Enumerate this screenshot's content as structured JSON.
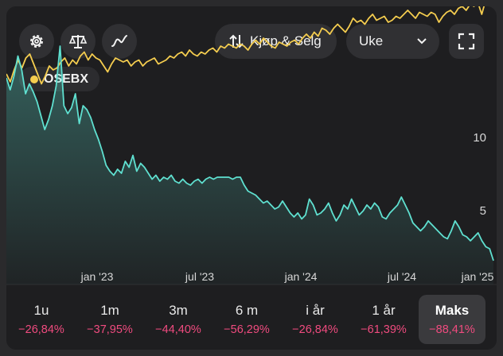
{
  "toolbar": {
    "icons": [
      "gear-icon",
      "scale-icon",
      "trend-line-icon"
    ],
    "trade_label": "Kjøp & Selg",
    "interval_label": "Uke",
    "fullscreen_icon": "fullscreen-icon"
  },
  "legend": {
    "label": "OSEBX",
    "color": "#f5cd4f"
  },
  "chart_data": {
    "type": "line",
    "x_ticks": [
      "jan '23",
      "jul '23",
      "jan '24",
      "jul '24",
      "jan '25"
    ],
    "y_ticks": [
      "5",
      "10"
    ],
    "ylim": [
      0,
      14
    ],
    "series": [
      {
        "name": "OSEBX",
        "color": "#f5cd4f",
        "values": [
          10.6,
          10.2,
          10.8,
          11.3,
          10.9,
          11.4,
          11.6,
          11.1,
          10.6,
          10.1,
          10.5,
          11.0,
          10.8,
          10.9,
          11.2,
          11.4,
          11.0,
          11.3,
          11.1,
          11.5,
          11.7,
          11.3,
          11.6,
          11.4,
          11.3,
          11.0,
          10.7,
          11.1,
          11.4,
          11.3,
          11.2,
          11.3,
          11.0,
          11.2,
          11.3,
          11.0,
          11.2,
          11.3,
          11.4,
          11.1,
          11.2,
          11.3,
          11.5,
          11.4,
          11.6,
          11.7,
          11.5,
          11.8,
          11.6,
          11.5,
          11.7,
          11.6,
          11.8,
          11.9,
          11.7,
          12.0,
          11.9,
          12.1,
          12.0,
          11.9,
          12.1,
          12.0,
          11.8,
          12.1,
          12.3,
          12.1,
          12.4,
          12.2,
          12.0,
          11.9,
          12.2,
          12.1,
          12.0,
          12.2,
          12.3,
          12.1,
          12.4,
          12.6,
          12.4,
          12.7,
          12.5,
          12.9,
          12.8,
          12.6,
          12.9,
          13.1,
          12.9,
          12.7,
          13.0,
          13.4,
          13.2,
          13.3,
          13.1,
          13.4,
          13.6,
          13.3,
          13.4,
          13.5,
          13.2,
          13.3,
          13.5,
          13.4,
          13.6,
          13.8,
          13.6,
          13.4,
          13.7,
          13.6,
          13.5,
          13.7,
          13.6,
          13.2,
          13.5,
          13.7,
          13.8,
          13.6,
          13.9,
          14.0,
          13.8,
          14.1,
          14.0,
          14.2,
          13.6,
          14.3,
          14.5,
          14.3
        ]
      },
      {
        "name": "Holding",
        "color": "#5fe0d0",
        "values": [
          10.4,
          9.8,
          10.5,
          11.5,
          10.8,
          9.6,
          10.1,
          9.7,
          9.2,
          8.5,
          7.8,
          8.3,
          9.0,
          10.0,
          12.0,
          9.0,
          8.6,
          8.9,
          9.6,
          8.1,
          9.0,
          8.8,
          8.4,
          7.8,
          7.3,
          6.7,
          6.0,
          5.7,
          5.5,
          5.8,
          5.6,
          6.2,
          5.9,
          6.5,
          5.7,
          6.1,
          5.9,
          5.6,
          5.3,
          5.5,
          5.2,
          5.4,
          5.3,
          5.5,
          5.2,
          5.1,
          5.3,
          5.1,
          5.0,
          5.2,
          5.3,
          5.1,
          5.3,
          5.4,
          5.3,
          5.4,
          5.4,
          5.4,
          5.4,
          5.3,
          5.4,
          5.4,
          5.0,
          4.7,
          4.6,
          4.5,
          4.3,
          4.1,
          4.2,
          4.0,
          3.8,
          3.9,
          4.2,
          3.9,
          3.6,
          3.4,
          3.6,
          3.3,
          3.5,
          4.3,
          4.0,
          3.5,
          3.6,
          3.8,
          4.1,
          3.6,
          3.2,
          3.5,
          4.0,
          3.8,
          4.3,
          3.9,
          3.5,
          3.7,
          4.0,
          3.8,
          4.1,
          3.9,
          3.4,
          3.3,
          3.6,
          3.8,
          4.0,
          4.4,
          4.0,
          3.6,
          3.1,
          2.9,
          2.7,
          2.9,
          3.2,
          3.0,
          2.8,
          2.6,
          2.4,
          2.3,
          2.7,
          3.2,
          2.9,
          2.5,
          2.4,
          2.2,
          2.4,
          2.6,
          2.2,
          1.9,
          1.8,
          1.2
        ]
      }
    ]
  },
  "periods": [
    {
      "label": "1u",
      "change": "−26,84%"
    },
    {
      "label": "1m",
      "change": "−37,95%"
    },
    {
      "label": "3m",
      "change": "−44,40%"
    },
    {
      "label": "6 m",
      "change": "−56,29%"
    },
    {
      "label": "i år",
      "change": "−26,84%"
    },
    {
      "label": "1 år",
      "change": "−61,39%"
    },
    {
      "label": "Maks",
      "change": "−88,41%"
    }
  ]
}
